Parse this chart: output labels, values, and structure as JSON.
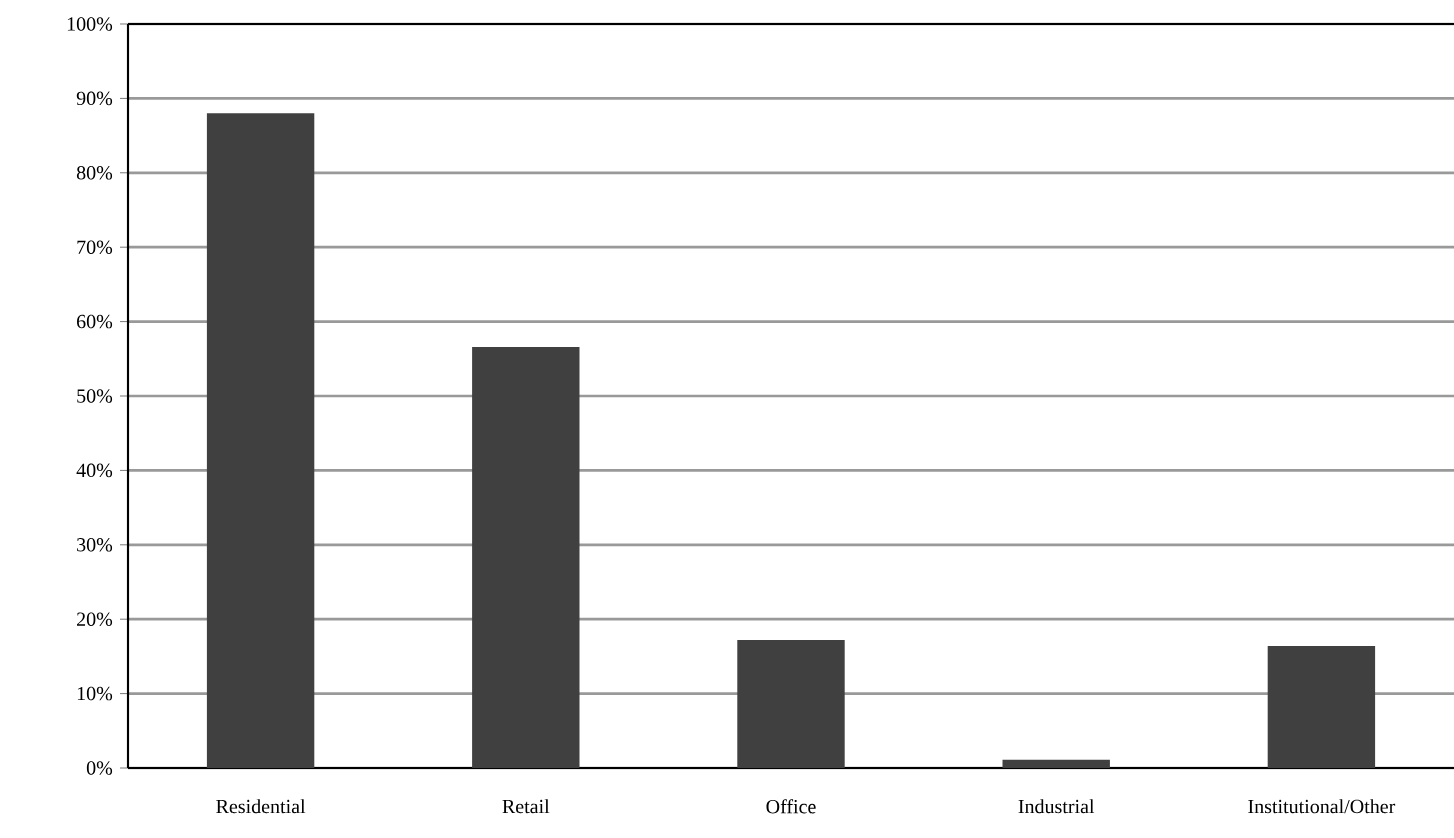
{
  "chart_data": {
    "type": "bar",
    "categories": [
      "Residential",
      "Retail",
      "Office",
      "Industrial",
      "Institutional/Other"
    ],
    "values": [
      88,
      56.6,
      17.2,
      1.1,
      16.4
    ],
    "color": "#404040",
    "ylim": [
      0,
      100
    ],
    "yticks": [
      {
        "value": 0,
        "label": "0%"
      },
      {
        "value": 10,
        "label": "10%"
      },
      {
        "value": 20,
        "label": "20%"
      },
      {
        "value": 30,
        "label": "30%"
      },
      {
        "value": 40,
        "label": "40%"
      },
      {
        "value": 50,
        "label": "50%"
      },
      {
        "value": 60,
        "label": "60%"
      },
      {
        "value": 70,
        "label": "70%"
      },
      {
        "value": 80,
        "label": "80%"
      },
      {
        "value": 90,
        "label": "90%"
      },
      {
        "value": 100,
        "label": "100%"
      }
    ],
    "grid": "y"
  }
}
